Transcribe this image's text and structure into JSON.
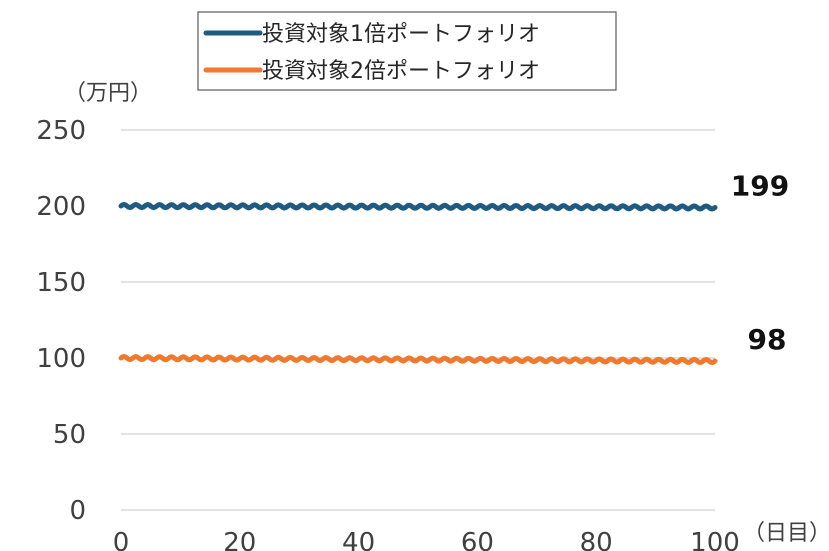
{
  "chart_data": {
    "type": "line",
    "x": [
      0,
      20,
      40,
      60,
      80,
      100
    ],
    "xlim": [
      0,
      100
    ],
    "ylim": [
      0,
      250
    ],
    "xticks": [
      "0",
      "20",
      "40",
      "60",
      "80",
      "100"
    ],
    "yticks": [
      "0",
      "50",
      "100",
      "150",
      "200",
      "250"
    ],
    "xunit": "（日目）",
    "yunit": "（万円）",
    "grid": "horizontal",
    "legend_position": "top",
    "series": [
      {
        "name": "投資対象1倍ポートフォリオ",
        "color": "#1f5b80",
        "start": 200,
        "end": 199,
        "amplitude": 1.0,
        "end_label": "199"
      },
      {
        "name": "投資対象2倍ポートフォリオ",
        "color": "#ef7a2f",
        "start": 100,
        "end": 98,
        "amplitude": 1.0,
        "end_label": "98"
      }
    ]
  }
}
